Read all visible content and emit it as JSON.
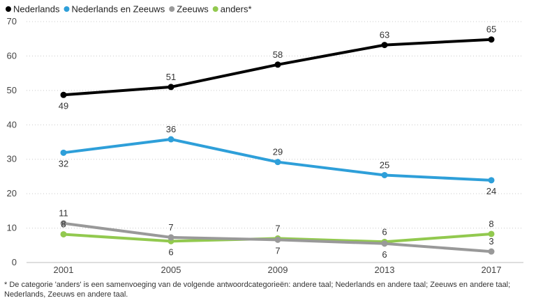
{
  "chart_data": {
    "type": "line",
    "title": "",
    "xlabel": "",
    "ylabel": "",
    "ylim": [
      0,
      70
    ],
    "yticks": [
      "0",
      "10",
      "20",
      "30",
      "40",
      "50",
      "60",
      "70"
    ],
    "categories": [
      "2001",
      "2005",
      "2009",
      "2013",
      "2017"
    ],
    "grid": "horizontal dotted",
    "legend_position": "top-left",
    "series": [
      {
        "name": "Nederlands",
        "color": "#000000",
        "values": [
          48.7,
          51,
          57.5,
          63.2,
          64.8
        ],
        "labels": [
          "49",
          "51",
          "58",
          "63",
          "65"
        ],
        "label_pos": [
          "below",
          "above",
          "above",
          "above",
          "above"
        ]
      },
      {
        "name": "Nederlands en Zeeuws",
        "color": "#2e9fd9",
        "values": [
          31.9,
          35.8,
          29.2,
          25.4,
          23.9
        ],
        "labels": [
          "32",
          "36",
          "29",
          "25",
          "24"
        ],
        "label_pos": [
          "below",
          "above",
          "above",
          "above",
          "below"
        ]
      },
      {
        "name": "Zeeuws",
        "color": "#999999",
        "values": [
          11.4,
          7.3,
          6.6,
          5.5,
          3.2
        ],
        "labels": [
          "11",
          "7",
          "7",
          "6",
          "3"
        ],
        "label_pos": [
          "above",
          "above",
          "below",
          "below",
          "above"
        ]
      },
      {
        "name": "anders*",
        "color": "#92c94f",
        "values": [
          8.2,
          6.2,
          7.0,
          6.0,
          8.3
        ],
        "labels": [
          "8",
          "6",
          "7",
          "6",
          "8"
        ],
        "label_pos": [
          "above",
          "below",
          "above",
          "above",
          "above"
        ]
      }
    ]
  },
  "footnote": "* De categorie 'anders' is een samenvoeging van de volgende antwoordcategorieën: andere taal; Nederlands en andere taal; Zeeuws en andere taal; Nederlands, Zeeuws en andere taal."
}
